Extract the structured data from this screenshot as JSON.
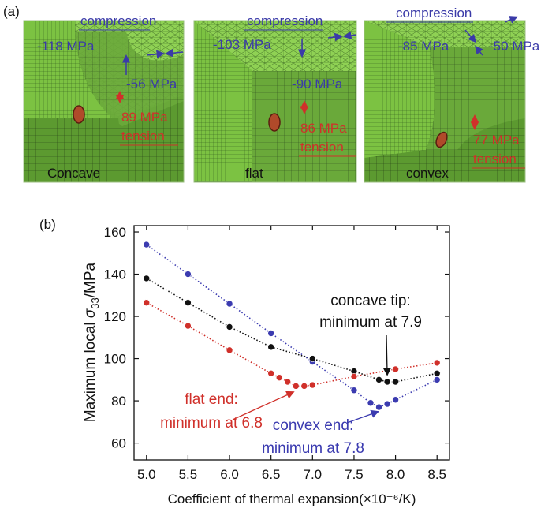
{
  "panel_a": {
    "tag": "(a)",
    "colors": {
      "compression": "#3a3aa8",
      "tension": "#d0302a",
      "mesh_fill": "#7cc242",
      "mesh_line": "#2f4f1f"
    },
    "panels": [
      {
        "name": "Concave",
        "compression": "compression",
        "top_stress": "-118 MPa",
        "side_stress": "-56 MPa",
        "tension_value": "89 MPa",
        "tension": "tension"
      },
      {
        "name": "flat",
        "compression": "compression",
        "top_stress": "-103 MPa",
        "side_stress": "-90 MPa",
        "tension_value": "86 MPa",
        "tension": "tension"
      },
      {
        "name": "convex",
        "compression": "compression",
        "top_stress": "-85 MPa",
        "side_stress": "-50 MPa",
        "tension_value": "77 MPa",
        "tension": "tension"
      }
    ]
  },
  "panel_b": {
    "tag": "(b)"
  },
  "chart_data": {
    "type": "line",
    "xlabel": "Coefficient of thermal expansion(×10⁻⁶/K)",
    "ylabel_prefix": "Maximum local ",
    "ylabel_symbol": "σ",
    "ylabel_subscript": "33",
    "ylabel_suffix": "/MPa",
    "xlim": [
      4.85,
      8.65
    ],
    "ylim": [
      52,
      163
    ],
    "xticks": [
      5.0,
      5.5,
      6.0,
      6.5,
      7.0,
      7.5,
      8.0,
      8.5
    ],
    "xtick_labels": [
      "5.0",
      "5.5",
      "6.0",
      "6.5",
      "7.0",
      "7.5",
      "8.0",
      "8.5"
    ],
    "yticks": [
      60,
      80,
      100,
      120,
      140,
      160
    ],
    "ytick_labels": [
      "60",
      "80",
      "100",
      "120",
      "140",
      "160"
    ],
    "series": [
      {
        "key": "convex",
        "color": "#3b3bb0",
        "x": [
          5.0,
          5.5,
          6.0,
          6.5,
          7.0,
          7.5,
          7.7,
          7.8,
          7.9,
          8.0,
          8.5
        ],
        "y": [
          154,
          140,
          126,
          112,
          98.5,
          85,
          79,
          77,
          78.5,
          80.5,
          90
        ]
      },
      {
        "key": "concave",
        "color": "#111111",
        "x": [
          5.0,
          5.5,
          6.0,
          6.5,
          7.0,
          7.5,
          7.8,
          7.9,
          8.0,
          8.5
        ],
        "y": [
          138,
          126.5,
          115,
          105.5,
          100,
          94,
          90,
          89,
          89,
          93
        ]
      },
      {
        "key": "flat",
        "color": "#d0302a",
        "x": [
          5.0,
          5.5,
          6.0,
          6.5,
          6.6,
          6.7,
          6.8,
          6.9,
          7.0,
          7.5,
          8.0,
          8.5
        ],
        "y": [
          126.5,
          115.5,
          104,
          93,
          91,
          89,
          87,
          87,
          87.5,
          91.5,
          95,
          98
        ]
      }
    ],
    "annotations": [
      {
        "key": "concave",
        "line1": "concave tip:",
        "line2": "minimum at 7.9",
        "color": "#111111",
        "target": [
          7.9,
          89
        ]
      },
      {
        "key": "flat",
        "line1": "flat end:",
        "line2": "minimum at 6.8",
        "color": "#d0302a",
        "target": [
          6.8,
          87
        ]
      },
      {
        "key": "convex",
        "line1": "convex end:",
        "line2": "minimum at 7.8",
        "color": "#3b3bb0",
        "target": [
          7.8,
          77
        ]
      }
    ]
  }
}
